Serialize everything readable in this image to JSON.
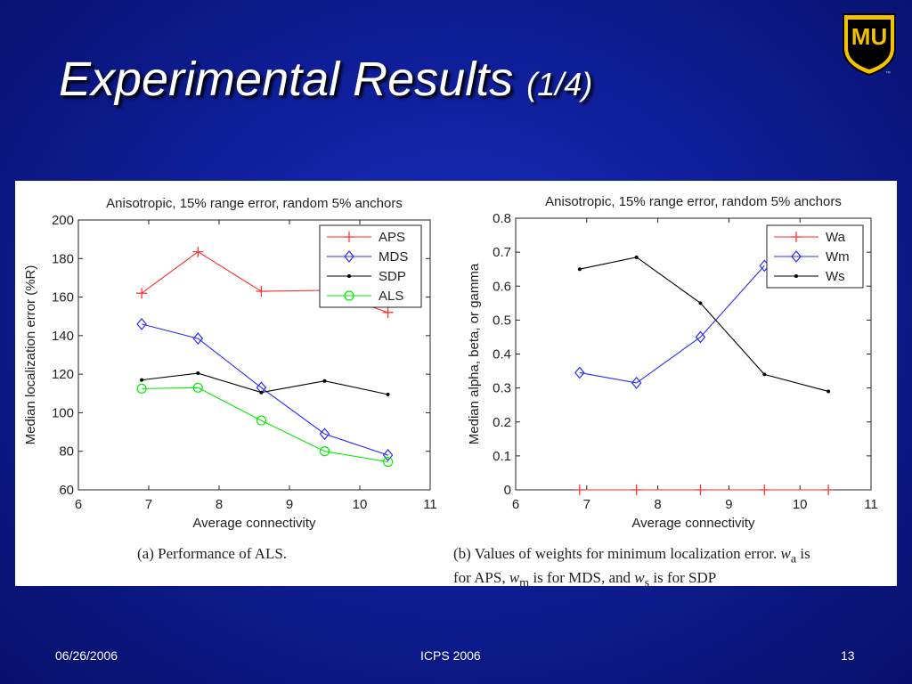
{
  "slide": {
    "title_main": "Experimental Results",
    "title_sub": "(1/4)",
    "logo_text": "MU",
    "logo_tm": "™"
  },
  "footer": {
    "date": "06/26/2006",
    "center": "ICPS 2006",
    "page": "13"
  },
  "captions": {
    "a": "(a)  Performance of ALS.",
    "b_line1_pre": "(b)  Values of weights for minimum localization error. ",
    "b_wa": "w",
    "b_wa_sub": "a",
    "b_line1_post": " is",
    "b_line2_pre": "for APS, ",
    "b_wm": "w",
    "b_wm_sub": "m",
    "b_line2_mid": " is for MDS, and ",
    "b_ws": "w",
    "b_ws_sub": "s",
    "b_line2_post": " is for SDP"
  },
  "chart_data": [
    {
      "type": "line",
      "title": "Anisotropic, 15% range error, random 5% anchors",
      "xlabel": "Average connectivity",
      "ylabel": "Median localization error (%R)",
      "xlim": [
        6,
        11
      ],
      "ylim": [
        60,
        200
      ],
      "xticks": [
        6,
        7,
        8,
        9,
        10,
        11
      ],
      "yticks": [
        60,
        80,
        100,
        120,
        140,
        160,
        180,
        200
      ],
      "legend_position": "top-right",
      "x": [
        6.9,
        7.7,
        8.6,
        9.5,
        10.4
      ],
      "series": [
        {
          "name": "APS",
          "color": "#ff2a2a",
          "marker": "plus",
          "values": [
            162,
            183.5,
            163,
            163.5,
            152
          ]
        },
        {
          "name": "MDS",
          "color": "#2a2aff",
          "marker": "diamond",
          "values": [
            146,
            138.5,
            113,
            89,
            78
          ]
        },
        {
          "name": "SDP",
          "color": "#000000",
          "marker": "dot",
          "values": [
            117,
            120.5,
            110.5,
            116.5,
            109.5
          ]
        },
        {
          "name": "ALS",
          "color": "#00ee00",
          "marker": "circle",
          "values": [
            112.5,
            113,
            96,
            80,
            74.5
          ]
        }
      ]
    },
    {
      "type": "line",
      "title": "Anisotropic, 15% range error, random 5% anchors",
      "xlabel": "Average connectivity",
      "ylabel": "Median alpha, beta, or gamma",
      "xlim": [
        6,
        11
      ],
      "ylim": [
        0,
        0.8
      ],
      "xticks": [
        6,
        7,
        8,
        9,
        10,
        11
      ],
      "yticks": [
        0,
        0.1,
        0.2,
        0.3,
        0.4,
        0.5,
        0.6,
        0.7,
        0.8
      ],
      "legend_position": "top-right",
      "x": [
        6.9,
        7.7,
        8.6,
        9.5,
        10.4
      ],
      "series": [
        {
          "name": "Wa",
          "color": "#ff2a2a",
          "marker": "plus",
          "values": [
            0,
            0,
            0,
            0,
            0
          ]
        },
        {
          "name": "Wm",
          "color": "#2a2aff",
          "marker": "diamond",
          "values": [
            0.345,
            0.315,
            0.45,
            0.66,
            null
          ]
        },
        {
          "name": "Ws",
          "color": "#000000",
          "marker": "dot",
          "values": [
            0.65,
            0.685,
            0.55,
            0.34,
            0.29
          ]
        }
      ]
    }
  ]
}
